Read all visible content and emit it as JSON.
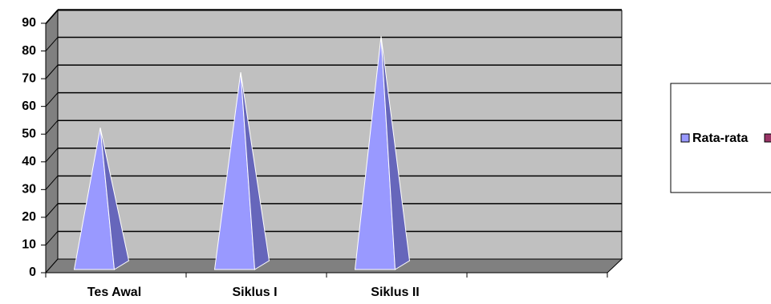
{
  "chart_data": {
    "type": "pyramid3d",
    "categories": [
      "Tes Awal",
      "Siklus I",
      "Siklus II",
      null
    ],
    "series": [
      {
        "name": "Rata-rata",
        "color": "#9999ff",
        "values": [
          50,
          70,
          83,
          null
        ]
      }
    ],
    "ylim": [
      0,
      90
    ],
    "yticks": [
      0,
      10,
      20,
      30,
      40,
      50,
      60,
      70,
      80,
      90
    ],
    "grid": true
  }
}
